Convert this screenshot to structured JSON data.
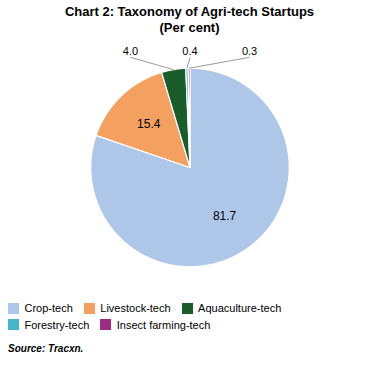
{
  "chart_data": {
    "type": "pie",
    "title": "Chart 2: Taxonomy of Agri-tech Startups\n(Per cent)",
    "categories": [
      "Crop-tech",
      "Livestock-tech",
      "Aquaculture-tech",
      "Forestry-tech",
      "Insect farming-tech"
    ],
    "values": [
      81.7,
      15.4,
      4.0,
      0.4,
      0.3
    ],
    "value_labels": [
      "81.7",
      "15.4",
      "4.0",
      "0.4",
      "0.3"
    ],
    "colors": [
      "#aec6e8",
      "#f4a060",
      "#1a5c2a",
      "#45b8c8",
      "#9b2d82"
    ],
    "data_labels": true,
    "legend": "bottom",
    "source": "Source: Tracxn."
  }
}
